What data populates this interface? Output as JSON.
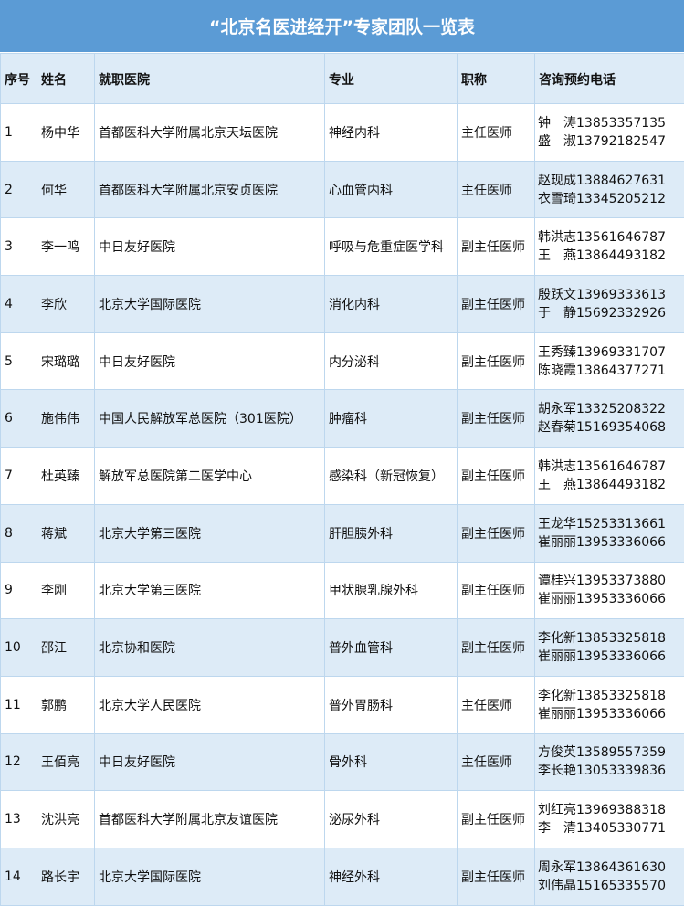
{
  "title": "“北京名医进经开”专家团队一览表",
  "headers": [
    "序号",
    "姓名",
    "就职医院",
    "专业",
    "职称",
    "咨询预约电话"
  ],
  "rows": [
    {
      "no": "1",
      "name": "杨中华",
      "hospital": "首都医科大学附属北京天坛医院",
      "specialty": "神经内科",
      "title": "主任医师",
      "phone1": "钟　涛13853357135",
      "phone2": "盛　淑13792182547"
    },
    {
      "no": "2",
      "name": "何华",
      "hospital": "首都医科大学附属北京安贞医院",
      "specialty": "心血管内科",
      "title": "主任医师",
      "phone1": "赵现成13884627631",
      "phone2": "衣雪琦13345205212"
    },
    {
      "no": "3",
      "name": "李一鸣",
      "hospital": "中日友好医院",
      "specialty": "呼吸与危重症医学科",
      "title": "副主任医师",
      "phone1": "韩洪志13561646787",
      "phone2": "王　燕13864493182"
    },
    {
      "no": "4",
      "name": "李欣",
      "hospital": "北京大学国际医院",
      "specialty": "消化内科",
      "title": "副主任医师",
      "phone1": "殷跃文13969333613",
      "phone2": "于　静15692332926"
    },
    {
      "no": "5",
      "name": "宋璐璐",
      "hospital": "中日友好医院",
      "specialty": "内分泌科",
      "title": "副主任医师",
      "phone1": "王秀臻13969331707",
      "phone2": "陈晓霞13864377271"
    },
    {
      "no": "6",
      "name": "施伟伟",
      "hospital": "中国人民解放军总医院（301医院）",
      "specialty": "肿瘤科",
      "title": "副主任医师",
      "phone1": "胡永军13325208322",
      "phone2": "赵春菊15169354068"
    },
    {
      "no": "7",
      "name": "杜英臻",
      "hospital": "解放军总医院第二医学中心",
      "specialty": "感染科（新冠恢复）",
      "title": "副主任医师",
      "phone1": "韩洪志13561646787",
      "phone2": "王　燕13864493182"
    },
    {
      "no": "8",
      "name": "蒋斌",
      "hospital": "北京大学第三医院",
      "specialty": "肝胆胰外科",
      "title": "副主任医师",
      "phone1": "王龙华15253313661",
      "phone2": "崔丽丽13953336066"
    },
    {
      "no": "9",
      "name": "李刚",
      "hospital": "北京大学第三医院",
      "specialty": "甲状腺乳腺外科",
      "title": "副主任医师",
      "phone1": "谭桂兴13953373880",
      "phone2": "崔丽丽13953336066"
    },
    {
      "no": "10",
      "name": "邵江",
      "hospital": "北京协和医院",
      "specialty": "普外血管科",
      "title": "副主任医师",
      "phone1": "李化新13853325818",
      "phone2": "崔丽丽13953336066"
    },
    {
      "no": "11",
      "name": "郭鹏",
      "hospital": "北京大学人民医院",
      "specialty": "普外胃肠科",
      "title": "主任医师",
      "phone1": "李化新13853325818",
      "phone2": "崔丽丽13953336066"
    },
    {
      "no": "12",
      "name": "王佰亮",
      "hospital": "中日友好医院",
      "specialty": "骨外科",
      "title": "主任医师",
      "phone1": "方俊英13589557359",
      "phone2": "李长艳13053339836"
    },
    {
      "no": "13",
      "name": "沈洪亮",
      "hospital": "首都医科大学附属北京友谊医院",
      "specialty": "泌尿外科",
      "title": "副主任医师",
      "phone1": "刘红亮13969388318",
      "phone2": "李　清13405330771"
    },
    {
      "no": "14",
      "name": "路长宇",
      "hospital": "北京大学国际医院",
      "specialty": "神经外科",
      "title": "副主任医师",
      "phone1": "周永军13864361630",
      "phone2": "刘伟晶15165335570"
    }
  ]
}
